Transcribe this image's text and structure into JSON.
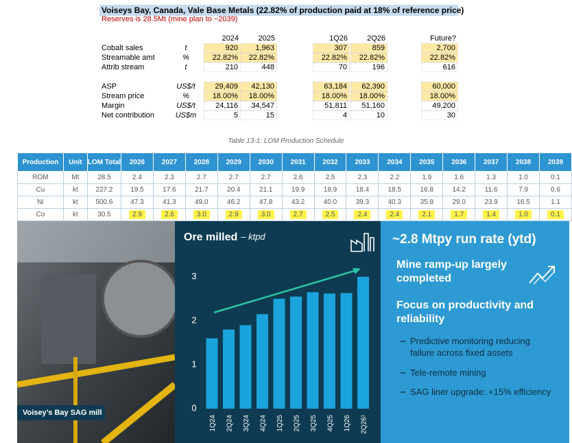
{
  "sheet": {
    "title": "Voiseys Bay, Canada, Vale Base Metals (22.82% of production paid at 18% of reference price)",
    "subtitle": "Reserves is 28.5Mt (mine plan to ~2039)",
    "columns": [
      "2024",
      "2025",
      "1Q26",
      "2Q26",
      "Future?"
    ],
    "rows": [
      {
        "label": "Cobalt sales",
        "unit": "t",
        "values": [
          "920",
          "1,963",
          "307",
          "859",
          "2,700"
        ]
      },
      {
        "label": "Streamable amt",
        "unit": "%",
        "values": [
          "22.82%",
          "22.82%",
          "22.82%",
          "22.82%",
          "22.82%"
        ]
      },
      {
        "label": "Attrib stream",
        "unit": "t",
        "values": [
          "210",
          "448",
          "70",
          "196",
          "616"
        ]
      },
      {
        "label": "ASP",
        "unit": "US$/t",
        "values": [
          "29,409",
          "42,130",
          "63,184",
          "62,390",
          "60,000"
        ]
      },
      {
        "label": "Stream price",
        "unit": "%",
        "values": [
          "18.00%",
          "18.00%",
          "18.00%",
          "18.00%",
          "18.00%"
        ]
      },
      {
        "label": "Margin",
        "unit": "US$/t",
        "values": [
          "24,116",
          "34,547",
          "51,811",
          "51,160",
          "49,200"
        ]
      },
      {
        "label": "Net contribution",
        "unit": "US$m",
        "values": [
          "5",
          "15",
          "4",
          "10",
          "30"
        ]
      }
    ]
  },
  "table": {
    "caption": "Table 13-1:  LOM Production Schedule",
    "header": [
      "Production",
      "Unit",
      "LOM Total",
      "2026",
      "2027",
      "2028",
      "2029",
      "2030",
      "2031",
      "2032",
      "2033",
      "2034",
      "2035",
      "2036",
      "2037",
      "2038",
      "2039"
    ],
    "rows": [
      [
        "ROM",
        "Mt",
        "28.5",
        "2.4",
        "2.3",
        "2.7",
        "2.7",
        "2.7",
        "2.6",
        "2.5",
        "2.3",
        "2.2",
        "1.9",
        "1.6",
        "1.3",
        "1.0",
        "0.1"
      ],
      [
        "Cu",
        "kt",
        "227.2",
        "19.5",
        "17.6",
        "21.7",
        "20.4",
        "21.1",
        "19.9",
        "18.9",
        "18.4",
        "18.5",
        "16.8",
        "14.2",
        "11.6",
        "7.9",
        "0.6"
      ],
      [
        "Ni",
        "kt",
        "500.6",
        "47.3",
        "41.3",
        "49.0",
        "46.2",
        "47.8",
        "43.2",
        "40.0",
        "39.3",
        "40.3",
        "35.8",
        "29.0",
        "23.9",
        "16.5",
        "1.1"
      ],
      [
        "Co",
        "kt",
        "30.5",
        "2.9",
        "2.6",
        "3.0",
        "2.9",
        "3.0",
        "2.7",
        "2.5",
        "2.4",
        "2.4",
        "2.1",
        "1.7",
        "1.4",
        "1.0",
        "0.1"
      ]
    ]
  },
  "slide": {
    "photo_caption": "Voisey’s Bay SAG mill",
    "chart_data": {
      "type": "bar",
      "title": "Ore milled",
      "unit_label": "– ktpd",
      "categories": [
        "1Q24",
        "2Q24",
        "3Q24",
        "4Q24",
        "1Q25",
        "2Q25",
        "3Q25",
        "4Q25",
        "1Q26",
        "2Q26¹"
      ],
      "values": [
        1.6,
        1.8,
        1.9,
        2.15,
        2.5,
        2.55,
        2.65,
        2.62,
        2.63,
        3.0
      ],
      "color": "#1ba3dc",
      "ylim": [
        0,
        3.2
      ],
      "yticks": [
        0,
        1,
        2,
        3
      ]
    },
    "headline": "~2.8 Mtpy run rate (ytd)",
    "headings": [
      "Mine ramp-up largely completed",
      "Focus on productivity and reliability"
    ],
    "bullets": [
      "Predictive monitoring reducing failure across fixed assets",
      "Tele-remote mining",
      "SAG liner upgrade: +15% efficiency"
    ]
  }
}
